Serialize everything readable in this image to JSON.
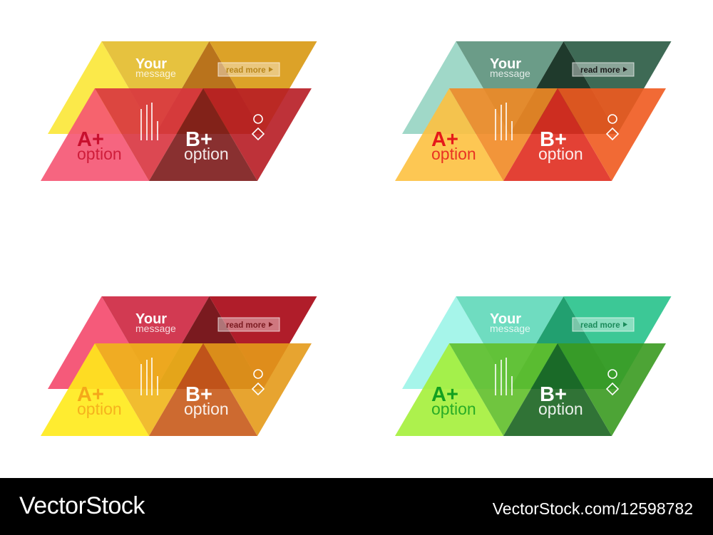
{
  "texts": {
    "your": "Your",
    "message": "message",
    "read_more": "read more",
    "a_plus": "A+",
    "b_plus": "B+",
    "option": "option"
  },
  "icons": [
    "bar-lines-icon",
    "circle-icon",
    "diamond-icon",
    "play-triangle-icon"
  ],
  "groups": [
    {
      "top": [
        "#fbe94a",
        "#e6c23f",
        "#b9731c",
        "#dca228"
      ],
      "bottom": [
        "#f55472",
        "#d8343f",
        "#7c1a1a",
        "#b71c24"
      ],
      "a_color": "#c8102e",
      "read_more_color": "#b8861a"
    },
    {
      "top": [
        "#a0d8c8",
        "#6b9c88",
        "#1f3a2c",
        "#3e6a55"
      ],
      "bottom": [
        "#fdc140",
        "#f18a25",
        "#e02c1f",
        "#f05a1f"
      ],
      "a_color": "#e5191a",
      "read_more_color": "#1a1a1a"
    },
    {
      "top": [
        "#f55a7a",
        "#d23a52",
        "#7a1a1f",
        "#b01d2a"
      ],
      "bottom": [
        "#ffea1a",
        "#f0b51a",
        "#c85a1a",
        "#e49a1a"
      ],
      "a_color": "#f5a81a",
      "read_more_color": "#7a1a20"
    },
    {
      "top": [
        "#a6f5ea",
        "#6fdcc0",
        "#22a070",
        "#3cc896"
      ],
      "bottom": [
        "#a4ef3a",
        "#60bf2a",
        "#1a6420",
        "#3a9a20"
      ],
      "a_color": "#12a020",
      "read_more_color": "#1a8a5a"
    }
  ],
  "footer": {
    "logo": "VectorStock",
    "url": "VectorStock.com/12598782"
  }
}
